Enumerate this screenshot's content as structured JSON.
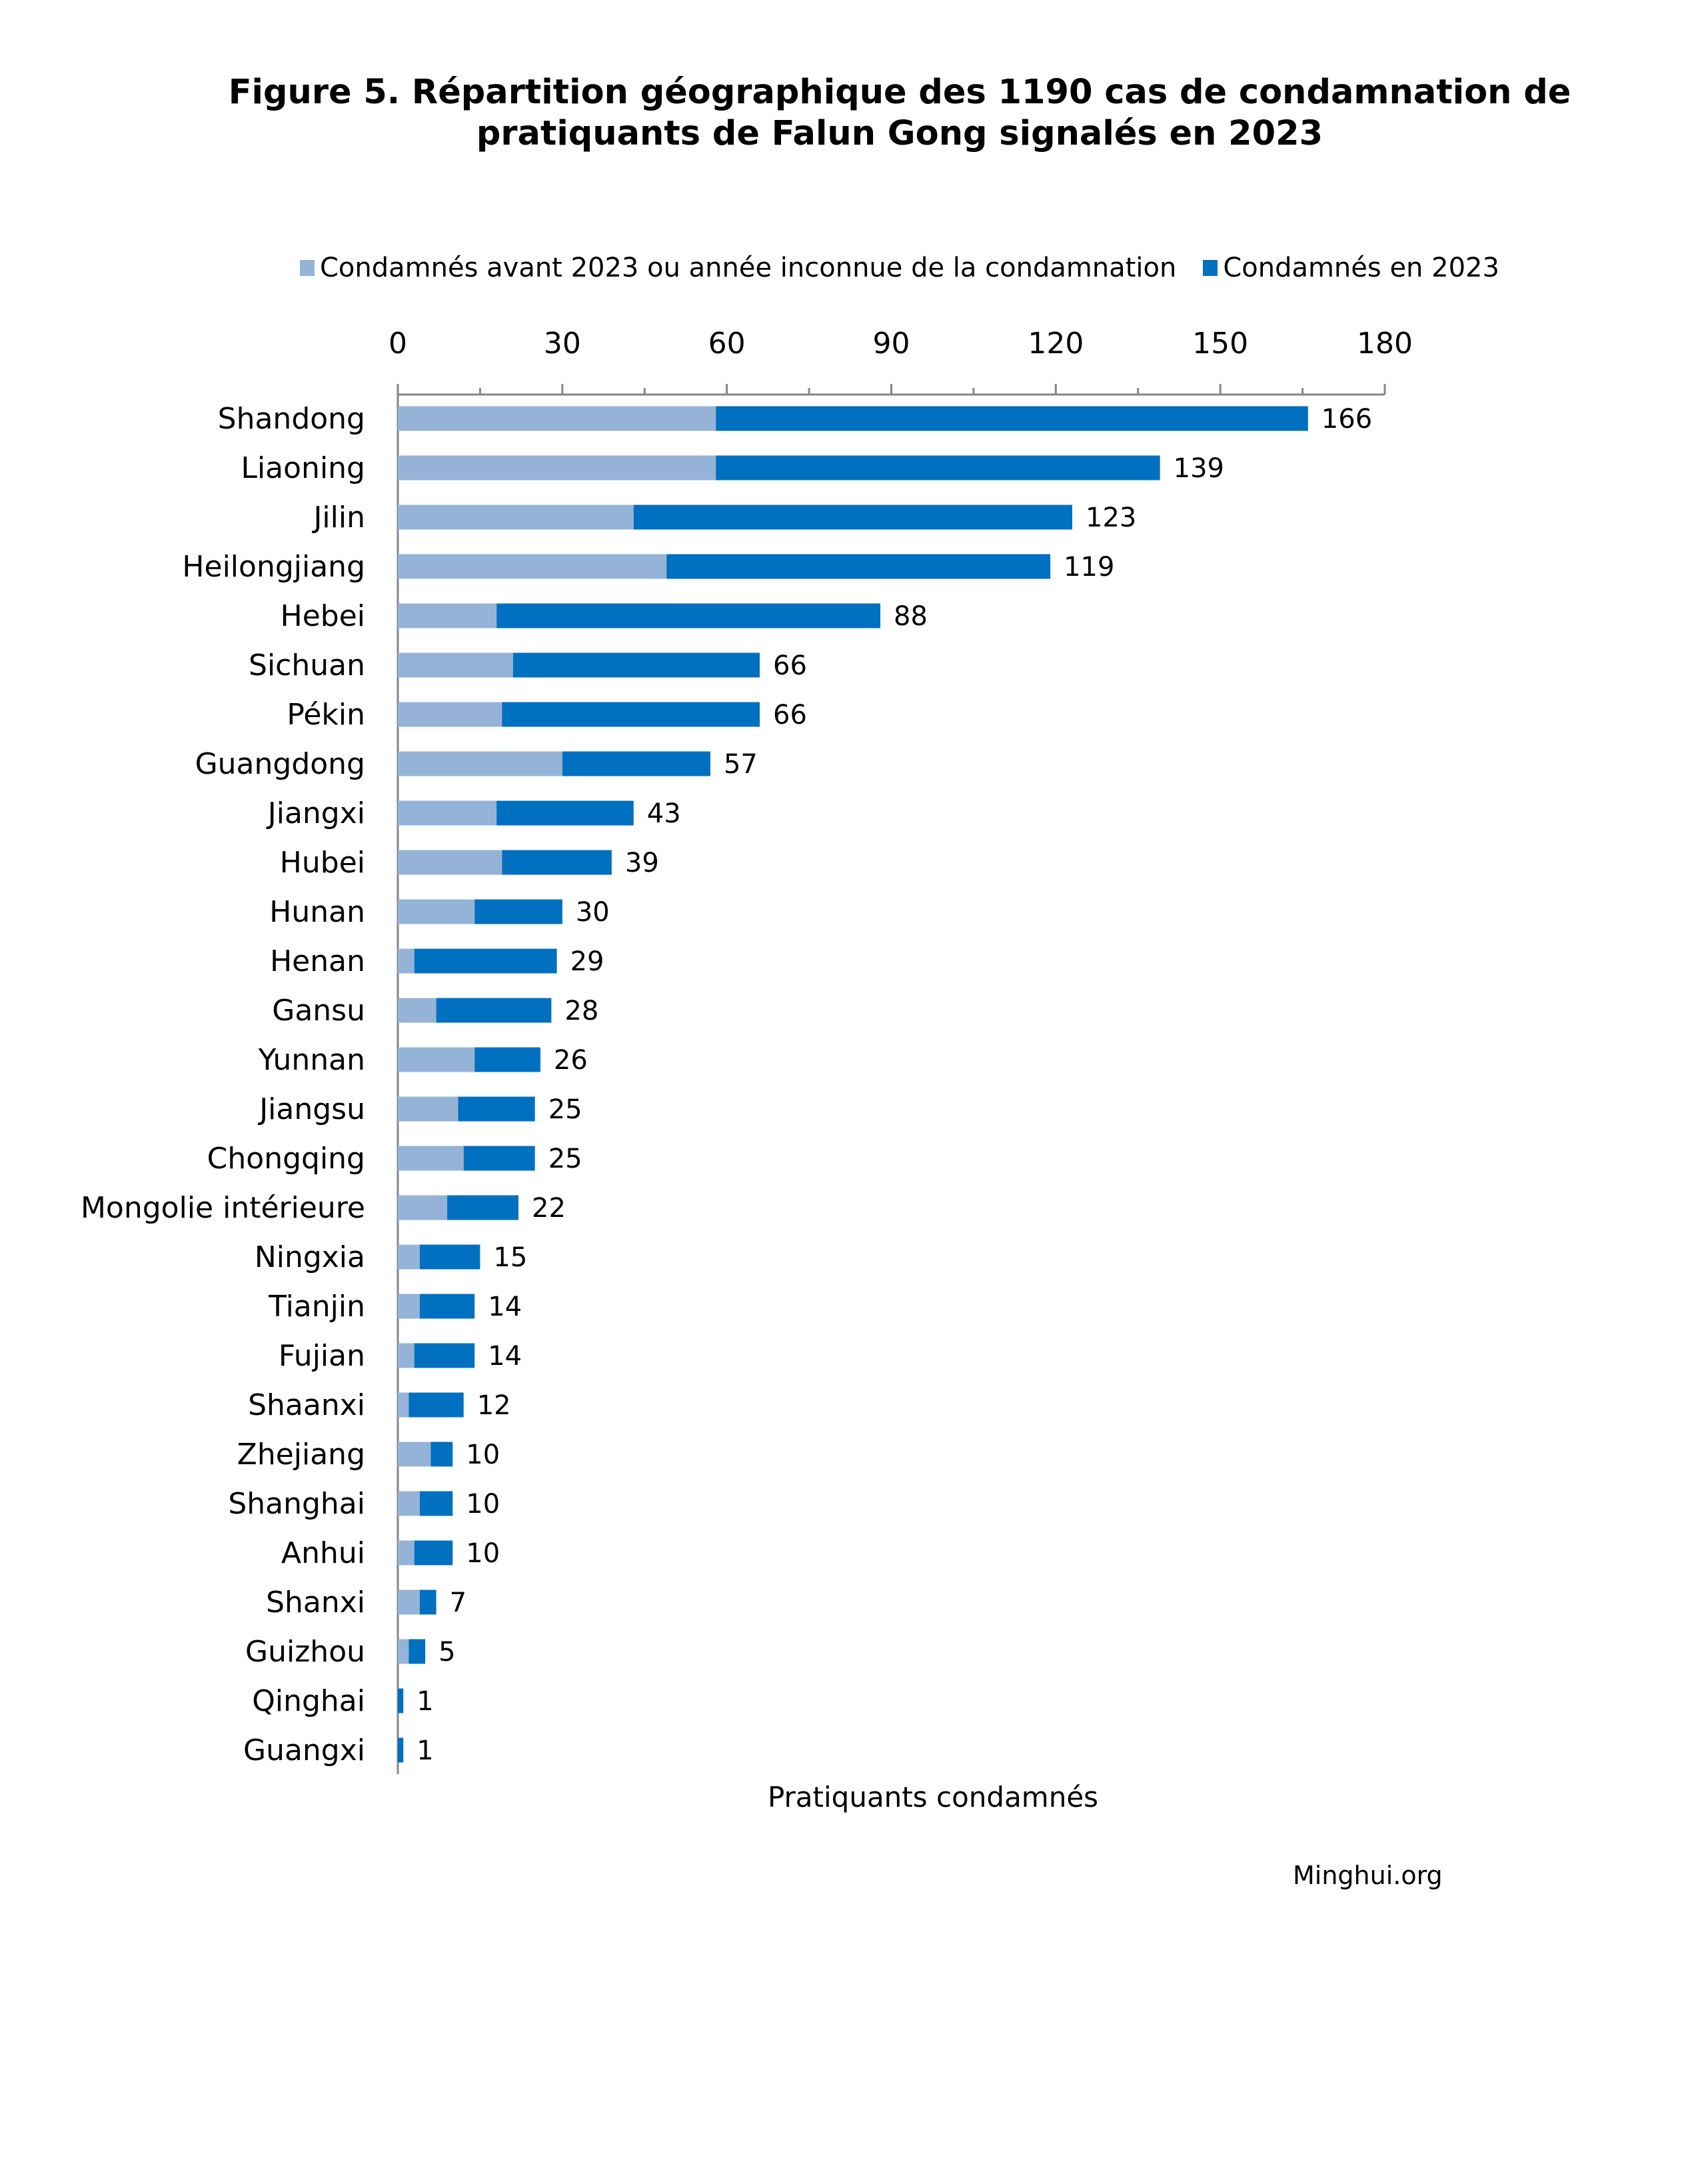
{
  "title": {
    "line1": "Figure 5. Répartition géographique des 1190 cas de condamnation de",
    "line2": "pratiquants de Falun Gong signalés en 2023"
  },
  "source": "Minghui.org",
  "colors": {
    "before": "#95B3D7",
    "in_2023": "#0070C0",
    "axis": "#868686",
    "text": "#000000"
  },
  "chart_data": {
    "type": "bar",
    "orientation": "horizontal",
    "stacked": true,
    "title": "Figure 5. Répartition géographique des 1190 cas de condamnation de pratiquants de Falun Gong signalés en 2023",
    "xlabel": "Pratiquants condamnés",
    "ylabel": "",
    "xlim": [
      0,
      180
    ],
    "x_ticks": [
      0,
      30,
      60,
      90,
      120,
      150,
      180
    ],
    "x_axis_position": "top",
    "grid": false,
    "legend_position": "top",
    "categories": [
      "Shandong",
      "Liaoning",
      "Jilin",
      "Heilongjiang",
      "Hebei",
      "Sichuan",
      "Pékin",
      "Guangdong",
      "Jiangxi",
      "Hubei",
      "Hunan",
      "Henan",
      "Gansu",
      "Yunnan",
      "Jiangsu",
      "Chongqing",
      "Mongolie intérieure",
      "Ningxia",
      "Tianjin",
      "Fujian",
      "Shaanxi",
      "Zhejiang",
      "Shanghai",
      "Anhui",
      "Shanxi",
      "Guizhou",
      "Qinghai",
      "Guangxi"
    ],
    "series": [
      {
        "name": "Condamnés avant 2023 ou année inconnue de la condamnation",
        "color": "#95B3D7",
        "values": [
          58,
          58,
          43,
          49,
          18,
          21,
          19,
          30,
          18,
          19,
          14,
          3,
          7,
          14,
          11,
          12,
          9,
          4,
          4,
          3,
          2,
          6,
          4,
          3,
          4,
          2,
          0,
          0
        ]
      },
      {
        "name": "Condamnés en 2023",
        "color": "#0070C0",
        "values": [
          108,
          81,
          80,
          70,
          70,
          45,
          47,
          27,
          25,
          20,
          16,
          26,
          21,
          12,
          14,
          13,
          13,
          11,
          10,
          11,
          10,
          4,
          6,
          7,
          3,
          3,
          1,
          1
        ]
      }
    ],
    "totals": [
      166,
      139,
      123,
      119,
      88,
      66,
      66,
      57,
      43,
      39,
      30,
      29,
      28,
      26,
      25,
      25,
      22,
      15,
      14,
      14,
      12,
      10,
      10,
      10,
      7,
      5,
      1,
      1
    ]
  }
}
